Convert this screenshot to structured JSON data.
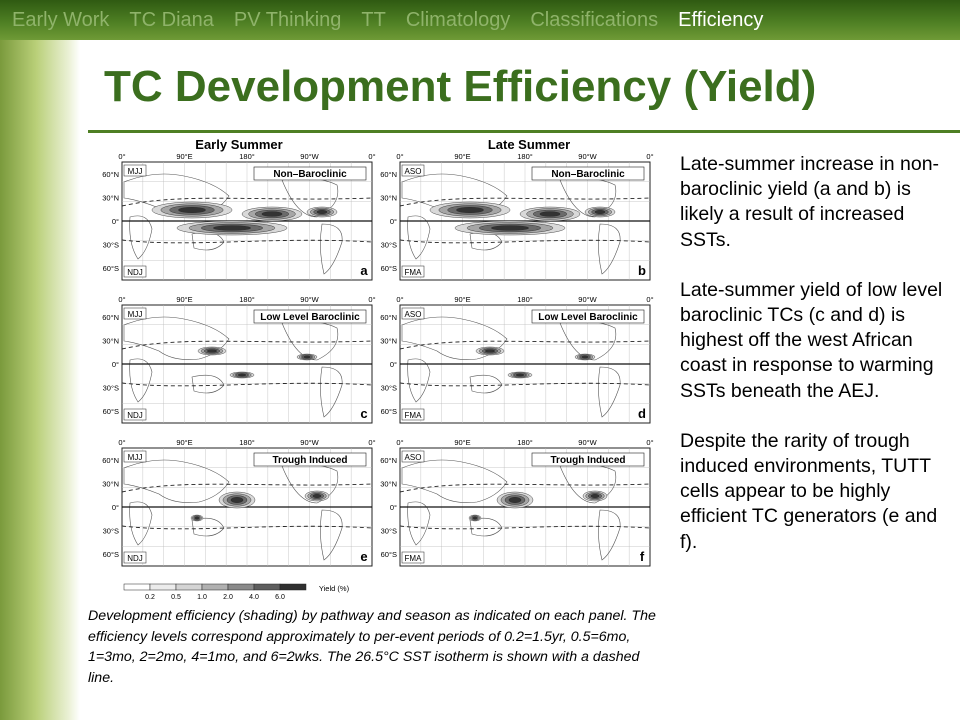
{
  "nav": {
    "items": [
      {
        "label": "Early Work",
        "active": false
      },
      {
        "label": "TC Diana",
        "active": false
      },
      {
        "label": "PV Thinking",
        "active": false
      },
      {
        "label": "TT",
        "active": false
      },
      {
        "label": "Climatology",
        "active": false
      },
      {
        "label": "Classifications",
        "active": false
      },
      {
        "label": "Efficiency",
        "active": true
      }
    ]
  },
  "title": "TC Development Efficiency (Yield)",
  "figure": {
    "column_headers": [
      "Early Summer",
      "Late Summer"
    ],
    "longitude_labels": [
      "0°",
      "90°E",
      "180°",
      "90°W",
      "0°"
    ],
    "latitude_labels": [
      "60°N",
      "30°N",
      "0°",
      "30°S",
      "60°S"
    ],
    "panels": [
      {
        "id": "a",
        "row_title": "Non–Baroclinic",
        "season_top": "MJJ",
        "season_bottom": "NDJ"
      },
      {
        "id": "b",
        "row_title": "Non–Baroclinic",
        "season_top": "ASO",
        "season_bottom": "FMA"
      },
      {
        "id": "c",
        "row_title": "Low Level Baroclinic",
        "season_top": "MJJ",
        "season_bottom": "NDJ"
      },
      {
        "id": "d",
        "row_title": "Low Level Baroclinic",
        "season_top": "ASO",
        "season_bottom": "FMA"
      },
      {
        "id": "e",
        "row_title": "Trough Induced",
        "season_top": "MJJ",
        "season_bottom": "NDJ"
      },
      {
        "id": "f",
        "row_title": "Trough Induced",
        "season_top": "ASO",
        "season_bottom": "FMA"
      }
    ],
    "colorbar": {
      "ticks": [
        "0.2",
        "0.5",
        "1.0",
        "2.0",
        "4.0",
        "6.0"
      ],
      "label": "Yield (%)"
    }
  },
  "side_text": [
    "Late-summer increase in non-baroclinic yield (a and b) is likely a result of increased SSTs.",
    "Late-summer yield of low level baroclinic TCs (c and d) is highest off the west African coast in response to warming SSTs beneath the AEJ.",
    "Despite the rarity of trough induced environments, TUTT cells appear to be highly efficient TC generators (e and f)."
  ],
  "caption": "Development efficiency (shading) by pathway and season as indicated on each panel.  The efficiency levels correspond approximately to per-event periods of 0.2=1.5yr, 0.5=6mo, 1=3mo, 2=2mo, 4=1mo, and 6=2wks.  The 26.5°C SST isotherm is shown with a dashed line."
}
